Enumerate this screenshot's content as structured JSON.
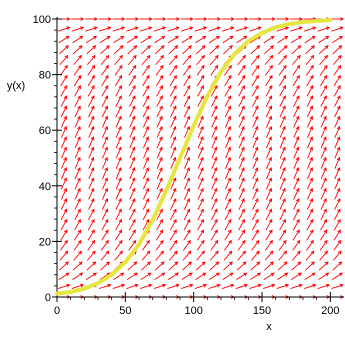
{
  "chart_data": {
    "type": "line",
    "title": "",
    "xlabel": "x",
    "ylabel": "y(x)",
    "xlim": [
      0,
      210
    ],
    "ylim": [
      0,
      100
    ],
    "x_ticks": [
      0,
      50,
      100,
      150,
      200
    ],
    "y_ticks": [
      0,
      20,
      40,
      60,
      80,
      100
    ],
    "grid": false,
    "legend": "none",
    "overlays": [
      {
        "type": "direction_field",
        "equation": "dy/dx = r*y*(1 - y/100)",
        "color": "#ff0000"
      }
    ],
    "series": [
      {
        "color": "#e6e640",
        "x": [
          0,
          10,
          20,
          30,
          40,
          50,
          60,
          70,
          80,
          90,
          100,
          110,
          120,
          130,
          140,
          150,
          160,
          170,
          180,
          190,
          200
        ],
        "y": [
          1.2,
          1.8,
          3.0,
          5.0,
          8.0,
          12.5,
          19.0,
          27.7,
          38.4,
          50.0,
          61.6,
          72.3,
          81.0,
          87.5,
          92.0,
          95.0,
          97.0,
          98.2,
          98.9,
          99.3,
          99.6
        ]
      }
    ]
  },
  "colors": {
    "field": "#ff0000",
    "curve": "#e6e640",
    "axis": "#000000"
  }
}
